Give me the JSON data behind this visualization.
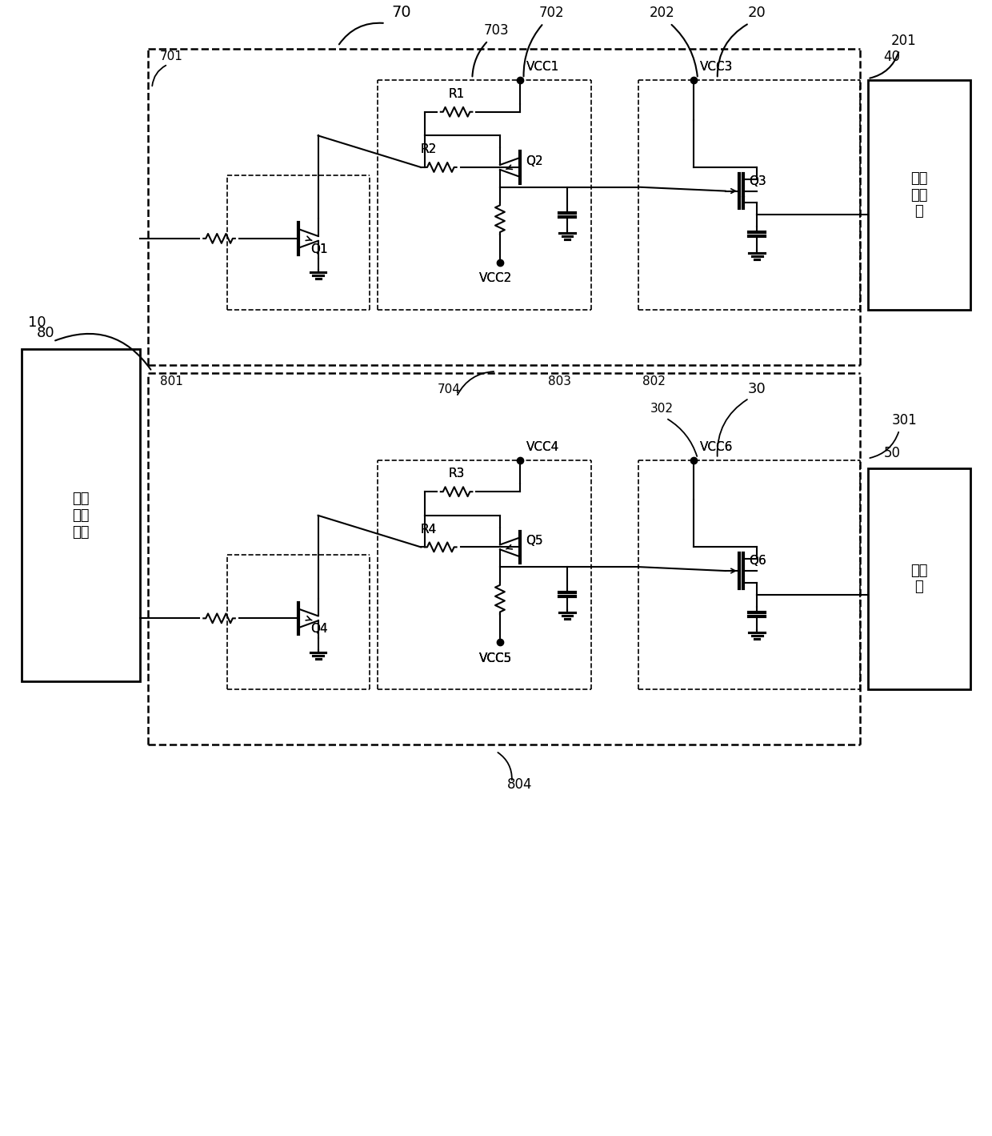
{
  "bg_color": "#ffffff",
  "fig_width": 12.4,
  "fig_height": 14.19,
  "dpi": 100,
  "xlim": [
    0,
    124
  ],
  "ylim": [
    0,
    141.9
  ]
}
